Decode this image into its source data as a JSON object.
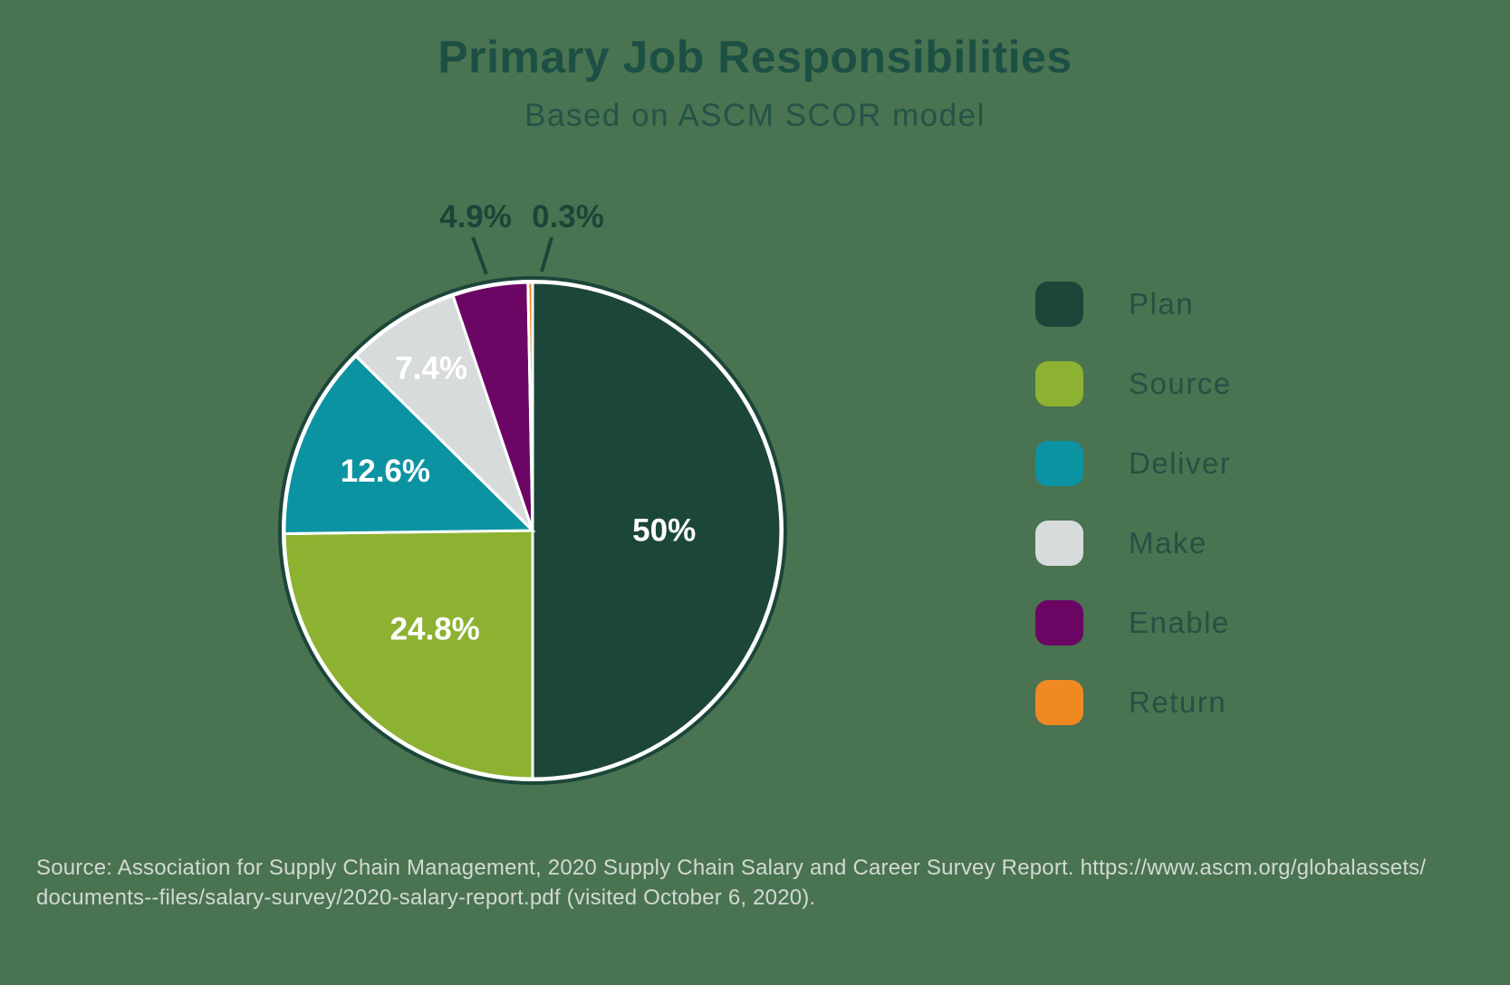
{
  "header": {
    "title": "Primary Job Responsibilities",
    "subtitle": "Based on ASCM SCOR model"
  },
  "chart_data": {
    "type": "pie",
    "title": "Primary Job Responsibilities",
    "subtitle": "Based on ASCM SCOR model",
    "units": "%",
    "start_angle_deg": 0,
    "direction": "clockwise",
    "legend_position": "right",
    "rim_color": "#1c4639",
    "separator_color": "#ffffff",
    "slices": [
      {
        "label": "Plan",
        "value": 50,
        "display": "50%",
        "color": "#1c4639",
        "label_pos": "inside",
        "label_r": 0.53
      },
      {
        "label": "Source",
        "value": 24.8,
        "display": "24.8%",
        "color": "#8db231",
        "label_pos": "inside",
        "label_r": 0.56
      },
      {
        "label": "Deliver",
        "value": 12.6,
        "display": "12.6%",
        "color": "#0c93a2",
        "label_pos": "inside",
        "label_r": 0.64
      },
      {
        "label": "Make",
        "value": 7.4,
        "display": "7.4%",
        "color": "#d8dbdc",
        "label_pos": "inside",
        "label_r": 0.77
      },
      {
        "label": "Enable",
        "value": 4.9,
        "display": "4.9%",
        "color": "#6c0665",
        "label_pos": "outside",
        "label_r": null
      },
      {
        "label": "Return",
        "value": 0.3,
        "display": "0.3%",
        "color": "#f08921",
        "label_pos": "outside",
        "label_r": null
      }
    ]
  },
  "footer": {
    "line1": "Source: Association for Supply Chain Management, 2020 Supply Chain Salary and Career Survey Report. https://www.ascm.org/globalassets/",
    "line2": "documents--files/salary-survey/2020-salary-report.pdf (visited October 6, 2020)."
  }
}
